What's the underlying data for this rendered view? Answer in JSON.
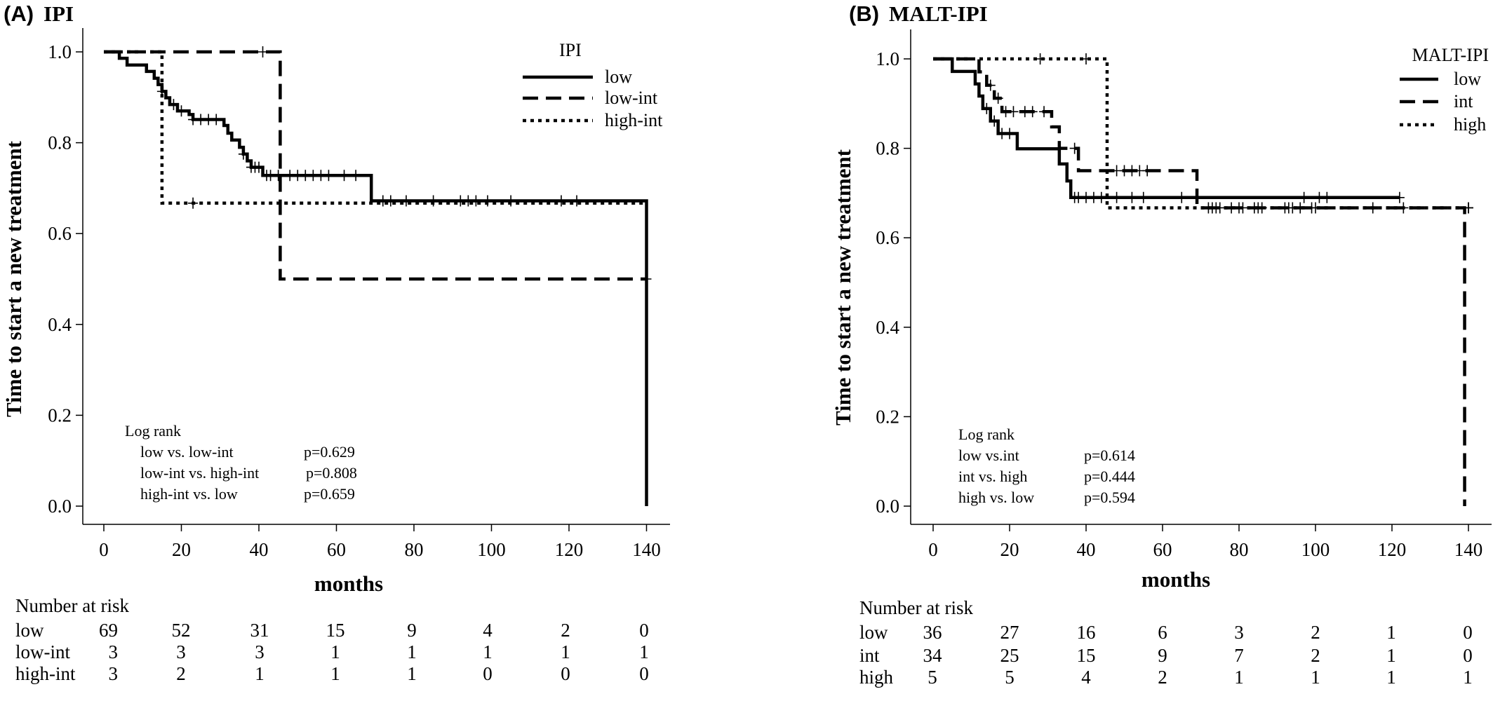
{
  "chart_data": [
    {
      "type": "line",
      "subtype": "kaplan-meier",
      "panel_letter": "(A)",
      "title": "IPI",
      "xlabel": "months",
      "ylabel": "Time to start a new treatment",
      "xlim": [
        0,
        145
      ],
      "ylim": [
        0.0,
        1.0
      ],
      "x_ticks": [
        0,
        20,
        40,
        60,
        80,
        100,
        120,
        140
      ],
      "y_ticks": [
        "0.0",
        "0.2",
        "0.4",
        "0.6",
        "0.8",
        "1.0"
      ],
      "legend_title": "IPI",
      "legend_position": "top-right",
      "series": [
        {
          "name": "low",
          "dash": "solid",
          "steps": [
            [
              0,
              1.0
            ],
            [
              4,
              0.986
            ],
            [
              6,
              0.971
            ],
            [
              11,
              0.957
            ],
            [
              13,
              0.942
            ],
            [
              14,
              0.928
            ],
            [
              15,
              0.913
            ],
            [
              16,
              0.899
            ],
            [
              17,
              0.884
            ],
            [
              19,
              0.87
            ],
            [
              22,
              0.862
            ],
            [
              23,
              0.851
            ],
            [
              31,
              0.838
            ],
            [
              32,
              0.821
            ],
            [
              33,
              0.806
            ],
            [
              35,
              0.79
            ],
            [
              36,
              0.775
            ],
            [
              37,
              0.76
            ],
            [
              38,
              0.746
            ],
            [
              41,
              0.728
            ],
            [
              69,
              0.672
            ],
            [
              140,
              0.0
            ]
          ],
          "end": 140,
          "censors": [
            [
              15,
              0.913
            ],
            [
              18,
              0.884
            ],
            [
              20,
              0.87
            ],
            [
              23,
              0.851
            ],
            [
              25,
              0.851
            ],
            [
              27,
              0.851
            ],
            [
              29,
              0.851
            ],
            [
              36,
              0.775
            ],
            [
              38,
              0.746
            ],
            [
              39,
              0.746
            ],
            [
              40,
              0.746
            ],
            [
              42,
              0.728
            ],
            [
              43,
              0.728
            ],
            [
              45,
              0.728
            ],
            [
              48,
              0.728
            ],
            [
              50,
              0.728
            ],
            [
              52,
              0.728
            ],
            [
              54,
              0.728
            ],
            [
              56,
              0.728
            ],
            [
              58,
              0.728
            ],
            [
              62,
              0.728
            ],
            [
              65,
              0.728
            ],
            [
              72,
              0.672
            ],
            [
              74,
              0.672
            ],
            [
              78,
              0.672
            ],
            [
              85,
              0.672
            ],
            [
              92,
              0.672
            ],
            [
              94,
              0.672
            ],
            [
              96,
              0.672
            ],
            [
              99,
              0.672
            ],
            [
              105,
              0.672
            ],
            [
              118,
              0.672
            ],
            [
              122,
              0.672
            ]
          ]
        },
        {
          "name": "low-int",
          "dash": "dashed",
          "steps": [
            [
              0,
              1.0
            ],
            [
              45.5,
              0.5
            ]
          ],
          "end": 140,
          "censors": [
            [
              41,
              1.0
            ],
            [
              140,
              0.5
            ]
          ]
        },
        {
          "name": "high-int",
          "dash": "dotted",
          "steps": [
            [
              0,
              1.0
            ],
            [
              15,
              0.667
            ]
          ],
          "end": 140,
          "censors": [
            [
              23,
              0.667
            ]
          ]
        }
      ],
      "logrank": {
        "title": "Log rank",
        "rows": [
          {
            "label": "low vs. low-int",
            "p": "p=0.629"
          },
          {
            "label": "low-int vs. high-int",
            "p": "p=0.808"
          },
          {
            "label": "high-int vs. low",
            "p": "p=0.659"
          }
        ]
      },
      "risk_table": {
        "title": "Number at risk",
        "rows": [
          {
            "label": "low",
            "values": [
              "69",
              "52",
              "31",
              "15",
              "9",
              "4",
              "2",
              "0"
            ]
          },
          {
            "label": "low-int",
            "values": [
              "3",
              "3",
              "3",
              "1",
              "1",
              "1",
              "1",
              "1"
            ]
          },
          {
            "label": "high-int",
            "values": [
              "3",
              "2",
              "1",
              "1",
              "1",
              "0",
              "0",
              "0"
            ]
          }
        ]
      }
    },
    {
      "type": "line",
      "subtype": "kaplan-meier",
      "panel_letter": "(B)",
      "title": "MALT-IPI",
      "xlabel": "months",
      "ylabel": "Time to start a new treatment",
      "xlim": [
        0,
        145
      ],
      "ylim": [
        0.0,
        1.0
      ],
      "x_ticks": [
        0,
        20,
        40,
        60,
        80,
        100,
        120,
        140
      ],
      "y_ticks": [
        "0.0",
        "0.2",
        "0.4",
        "0.6",
        "0.8",
        "1.0"
      ],
      "legend_title": "MALT-IPI",
      "legend_position": "top-right",
      "series": [
        {
          "name": "low",
          "dash": "solid",
          "steps": [
            [
              0,
              1.0
            ],
            [
              5,
              0.972
            ],
            [
              11,
              0.944
            ],
            [
              12,
              0.917
            ],
            [
              13,
              0.889
            ],
            [
              15,
              0.861
            ],
            [
              17,
              0.833
            ],
            [
              22,
              0.799
            ],
            [
              33,
              0.765
            ],
            [
              35,
              0.727
            ],
            [
              36,
              0.69
            ]
          ],
          "end": 122,
          "censors": [
            [
              14,
              0.889
            ],
            [
              16,
              0.861
            ],
            [
              18,
              0.833
            ],
            [
              20,
              0.833
            ],
            [
              37,
              0.69
            ],
            [
              38,
              0.69
            ],
            [
              40,
              0.69
            ],
            [
              42,
              0.69
            ],
            [
              44,
              0.69
            ],
            [
              48,
              0.69
            ],
            [
              52,
              0.69
            ],
            [
              55,
              0.69
            ],
            [
              65,
              0.69
            ],
            [
              69,
              0.69
            ],
            [
              97,
              0.69
            ],
            [
              101,
              0.69
            ],
            [
              103,
              0.69
            ],
            [
              122,
              0.69
            ]
          ]
        },
        {
          "name": "int",
          "dash": "dashed",
          "steps": [
            [
              0,
              1.0
            ],
            [
              12,
              0.971
            ],
            [
              14,
              0.941
            ],
            [
              16,
              0.912
            ],
            [
              18,
              0.882
            ],
            [
              31,
              0.848
            ],
            [
              33,
              0.8
            ],
            [
              38,
              0.75
            ],
            [
              69,
              0.667
            ],
            [
              139,
              0.0
            ]
          ],
          "end": 139,
          "censors": [
            [
              15,
              0.941
            ],
            [
              17,
              0.912
            ],
            [
              19,
              0.882
            ],
            [
              21,
              0.882
            ],
            [
              24,
              0.882
            ],
            [
              26,
              0.882
            ],
            [
              29,
              0.882
            ],
            [
              37,
              0.8
            ],
            [
              48,
              0.75
            ],
            [
              50,
              0.75
            ],
            [
              52,
              0.75
            ],
            [
              54,
              0.75
            ],
            [
              56,
              0.75
            ],
            [
              72,
              0.667
            ],
            [
              75,
              0.667
            ],
            [
              78,
              0.667
            ],
            [
              80,
              0.667
            ],
            [
              84,
              0.667
            ],
            [
              92,
              0.667
            ],
            [
              94,
              0.667
            ],
            [
              96,
              0.667
            ],
            [
              115,
              0.667
            ],
            [
              140,
              0.667
            ]
          ]
        },
        {
          "name": "high",
          "dash": "dotted",
          "steps": [
            [
              0,
              1.0
            ],
            [
              45.5,
              0.667
            ]
          ],
          "end": 139,
          "censors": [
            [
              28,
              1.0
            ],
            [
              40,
              1.0
            ],
            [
              73,
              0.667
            ],
            [
              74,
              0.667
            ],
            [
              81,
              0.667
            ],
            [
              85,
              0.667
            ],
            [
              86,
              0.667
            ],
            [
              93,
              0.667
            ],
            [
              99,
              0.667
            ],
            [
              100,
              0.667
            ],
            [
              123,
              0.667
            ],
            [
              140,
              0.667
            ]
          ]
        }
      ],
      "logrank": {
        "title": "Log rank",
        "rows": [
          {
            "label": "low vs.int",
            "p": "p=0.614"
          },
          {
            "label": "int vs. high",
            "p": "p=0.444"
          },
          {
            "label": "high vs. low",
            "p": "p=0.594"
          }
        ]
      },
      "risk_table": {
        "title": "Number at risk",
        "rows": [
          {
            "label": "low",
            "values": [
              "36",
              "27",
              "16",
              "6",
              "3",
              "2",
              "1",
              "0"
            ]
          },
          {
            "label": "int",
            "values": [
              "34",
              "25",
              "15",
              "9",
              "7",
              "2",
              "1",
              "0"
            ]
          },
          {
            "label": "high",
            "values": [
              "5",
              "5",
              "4",
              "2",
              "1",
              "1",
              "1",
              "1"
            ]
          }
        ]
      }
    }
  ]
}
